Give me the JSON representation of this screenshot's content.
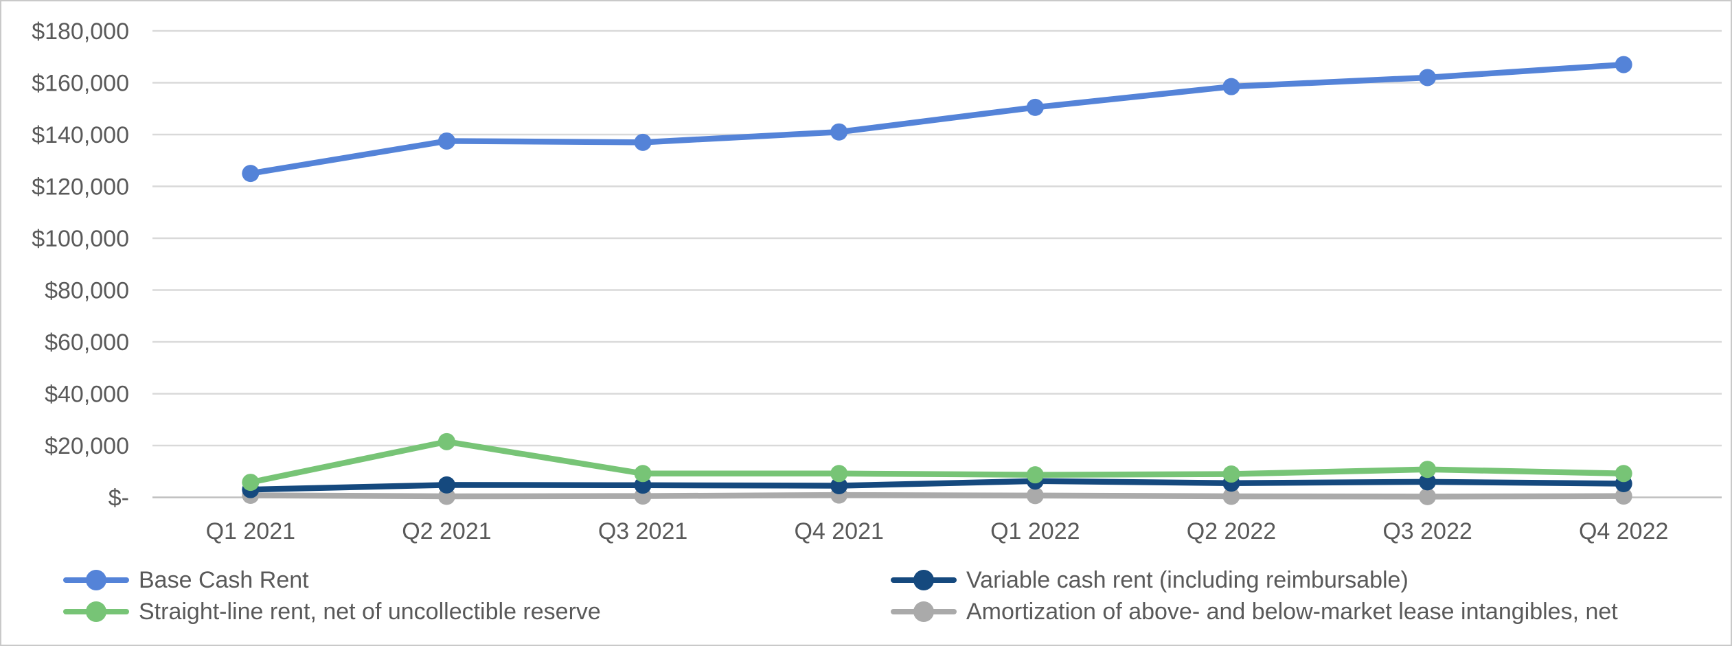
{
  "chart_data": {
    "type": "line",
    "categories": [
      "Q1 2021",
      "Q2 2021",
      "Q3 2021",
      "Q4 2021",
      "Q1 2022",
      "Q2 2022",
      "Q3 2022",
      "Q4 2022"
    ],
    "series": [
      {
        "name": "Base Cash Rent",
        "color": "#5483d8",
        "values": [
          125000,
          137500,
          137000,
          141000,
          150500,
          158500,
          162000,
          167000
        ]
      },
      {
        "name": "Variable cash rent (including reimbursable)",
        "color": "#15497e",
        "values": [
          3000,
          4800,
          4700,
          4500,
          6300,
          5500,
          6000,
          5300
        ]
      },
      {
        "name": "Straight-line rent, net of uncollectible reserve",
        "color": "#77c476",
        "values": [
          5800,
          21500,
          9200,
          9200,
          8700,
          9000,
          10800,
          9200
        ]
      },
      {
        "name": "Amortization of above- and below-market lease intangibles, net",
        "color": "#aaaaaa",
        "values": [
          800,
          400,
          500,
          900,
          700,
          400,
          300,
          500
        ]
      }
    ],
    "y_ticks": [
      {
        "label": "$180,000",
        "value": 180000
      },
      {
        "label": "$160,000",
        "value": 160000
      },
      {
        "label": "$140,000",
        "value": 140000
      },
      {
        "label": "$120,000",
        "value": 120000
      },
      {
        "label": "$100,000",
        "value": 100000
      },
      {
        "label": "$80,000",
        "value": 80000
      },
      {
        "label": "$60,000",
        "value": 60000
      },
      {
        "label": "$40,000",
        "value": 40000
      },
      {
        "label": "$20,000",
        "value": 20000
      },
      {
        "label": "$-",
        "value": 0
      }
    ],
    "ylim": [
      0,
      180000
    ],
    "xlabel": "",
    "ylabel": "",
    "grid": true,
    "legend_position": "bottom",
    "gridline_color": "#d9d9d9",
    "axis_line_color": "#bfbfbf",
    "tick_label_color": "#595959"
  }
}
